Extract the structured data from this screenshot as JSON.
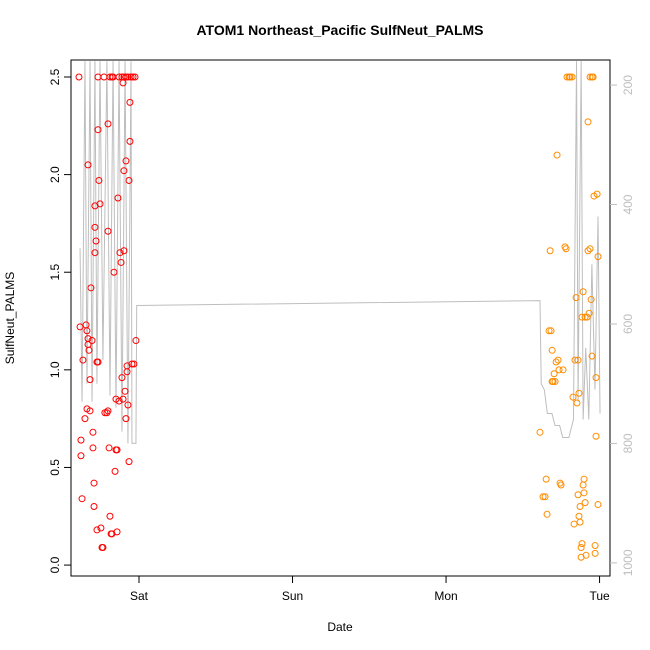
{
  "chart_data": {
    "type": "scatter",
    "title": "ATOM1 Northeast_Pacific SulfNeut_PALMS",
    "xlabel": "Date",
    "ylabel": "SulfNeut_PALMS",
    "xlim": [
      0.557,
      4.068
    ],
    "xticks": [
      {
        "value": 1,
        "label": "Sat"
      },
      {
        "value": 2,
        "label": "Sun"
      },
      {
        "value": 3,
        "label": "Mon"
      },
      {
        "value": 4,
        "label": "Tue"
      }
    ],
    "ylim": [
      -0.056,
      2.587
    ],
    "yticks": [
      {
        "value": 0,
        "label": "0.0"
      },
      0.5,
      {
        "value": 1,
        "label": "1.0"
      },
      1.5,
      {
        "value": 2,
        "label": "2.0"
      },
      2.5
    ],
    "y2lim": [
      1022,
      158
    ],
    "y2ticks": [
      200,
      400,
      600,
      800,
      1000
    ],
    "y2color": "#bebebe",
    "series": [
      {
        "color": "#ff0000",
        "kind": "points",
        "x": [
          0.609,
          0.616,
          0.622,
          0.622,
          0.629,
          0.635,
          0.648,
          0.655,
          0.661,
          0.661,
          0.668,
          0.668,
          0.668,
          0.674,
          0.681,
          0.681,
          0.687,
          0.694,
          0.7,
          0.7,
          0.707,
          0.707,
          0.713,
          0.713,
          0.713,
          0.72,
          0.726,
          0.726,
          0.733,
          0.733,
          0.733,
          0.739,
          0.746,
          0.752,
          0.759,
          0.765,
          0.772,
          0.778,
          0.791,
          0.798,
          0.798,
          0.798,
          0.805,
          0.811,
          0.811,
          0.818,
          0.824,
          0.824,
          0.831,
          0.837,
          0.844,
          0.85,
          0.85,
          0.857,
          0.857,
          0.863,
          0.87,
          0.87,
          0.876,
          0.883,
          0.889,
          0.889,
          0.896,
          0.896,
          0.902,
          0.902,
          0.902,
          0.909,
          0.915,
          0.915,
          0.915,
          0.922,
          0.922,
          0.928,
          0.928,
          0.935,
          0.935,
          0.941,
          0.941,
          0.948,
          0.954,
          0.961,
          0.967,
          0.974,
          0.98
        ],
        "values": [
          2.5,
          1.22,
          0.64,
          0.56,
          0.34,
          1.05,
          0.75,
          1.23,
          0.8,
          1.2,
          1.16,
          1.13,
          2.05,
          1.1,
          0.95,
          0.79,
          1.42,
          1.15,
          0.68,
          0.6,
          0.42,
          0.3,
          1.84,
          1.73,
          1.6,
          1.66,
          1.04,
          0.18,
          1.04,
          2.5,
          2.23,
          1.97,
          1.85,
          0.19,
          0.09,
          0.09,
          2.5,
          0.78,
          0.78,
          0.79,
          2.26,
          1.71,
          0.6,
          2.5,
          0.25,
          0.16,
          0.16,
          2.5,
          2.5,
          1.5,
          0.48,
          0.59,
          0.85,
          0.59,
          0.17,
          1.88,
          2.5,
          0.84,
          1.6,
          1.55,
          0.96,
          2.5,
          0.85,
          2.47,
          2.02,
          1.61,
          2.5,
          0.89,
          0.75,
          2.07,
          2.5,
          0.99,
          1.02,
          0.82,
          2.5,
          0.53,
          1.97,
          2.37,
          2.17,
          2.5,
          1.03,
          2.5,
          1.03,
          2.5,
          1.15
        ]
      },
      {
        "color": "#ff8c00",
        "kind": "points",
        "x": [
          3.612,
          3.632,
          3.645,
          3.652,
          3.658,
          3.671,
          3.678,
          3.684,
          3.691,
          3.691,
          3.697,
          3.704,
          3.71,
          3.717,
          3.723,
          3.73,
          3.736,
          3.743,
          3.749,
          3.762,
          3.775,
          3.782,
          3.788,
          3.801,
          3.808,
          3.821,
          3.827,
          3.834,
          3.84,
          3.847,
          3.853,
          3.86,
          3.86,
          3.866,
          3.866,
          3.873,
          3.873,
          3.88,
          3.88,
          3.886,
          3.886,
          3.893,
          3.893,
          3.899,
          3.899,
          3.906,
          3.906,
          3.912,
          3.919,
          3.925,
          3.925,
          3.932,
          3.938,
          3.938,
          3.945,
          3.951,
          3.951,
          3.958,
          3.964,
          3.971,
          3.971,
          3.977,
          3.977,
          3.984,
          3.99,
          3.99
        ],
        "values": [
          0.68,
          0.35,
          0.35,
          0.44,
          0.26,
          1.2,
          1.61,
          1.2,
          1.1,
          0.94,
          0.94,
          0.98,
          0.94,
          1.04,
          2.1,
          1.05,
          1.0,
          0.42,
          0.41,
          1.0,
          1.63,
          1.62,
          2.5,
          2.5,
          2.5,
          2.5,
          0.86,
          0.21,
          1.05,
          1.37,
          0.83,
          1.05,
          0.36,
          0.88,
          0.25,
          0.22,
          0.3,
          0.09,
          0.04,
          0.11,
          1.27,
          0.41,
          1.4,
          0.44,
          0.37,
          0.32,
          1.27,
          0.05,
          1.27,
          2.27,
          1.61,
          1.29,
          2.5,
          1.62,
          1.36,
          1.07,
          2.5,
          2.5,
          1.89,
          0.1,
          0.06,
          0.66,
          0.96,
          1.9,
          1.58,
          0.31
        ]
      },
      {
        "color": "#bebebe",
        "kind": "line",
        "axis": "y2",
        "x": [
          0.616,
          0.629,
          0.648,
          0.661,
          0.681,
          0.694,
          0.713,
          0.726,
          0.746,
          0.765,
          0.791,
          0.811,
          0.831,
          0.85,
          0.87,
          0.889,
          0.909,
          0.928,
          0.948,
          0.954,
          0.98,
          0.985,
          3.612,
          3.62,
          3.64,
          3.66,
          3.69,
          3.71,
          3.74,
          3.76,
          3.8,
          3.83,
          3.85,
          3.86,
          3.88,
          3.893,
          3.91,
          3.93,
          3.95,
          3.97,
          3.99,
          4.003
        ],
        "values": [
          473,
          730,
          160,
          700,
          160,
          730,
          160,
          700,
          160,
          660,
          160,
          720,
          160,
          740,
          160,
          780,
          160,
          800,
          160,
          800,
          800,
          569,
          561,
          700,
          710,
          750,
          750,
          770,
          770,
          790,
          790,
          760,
          160,
          730,
          160,
          760,
          640,
          760,
          500,
          710,
          420,
          750
        ]
      }
    ]
  }
}
